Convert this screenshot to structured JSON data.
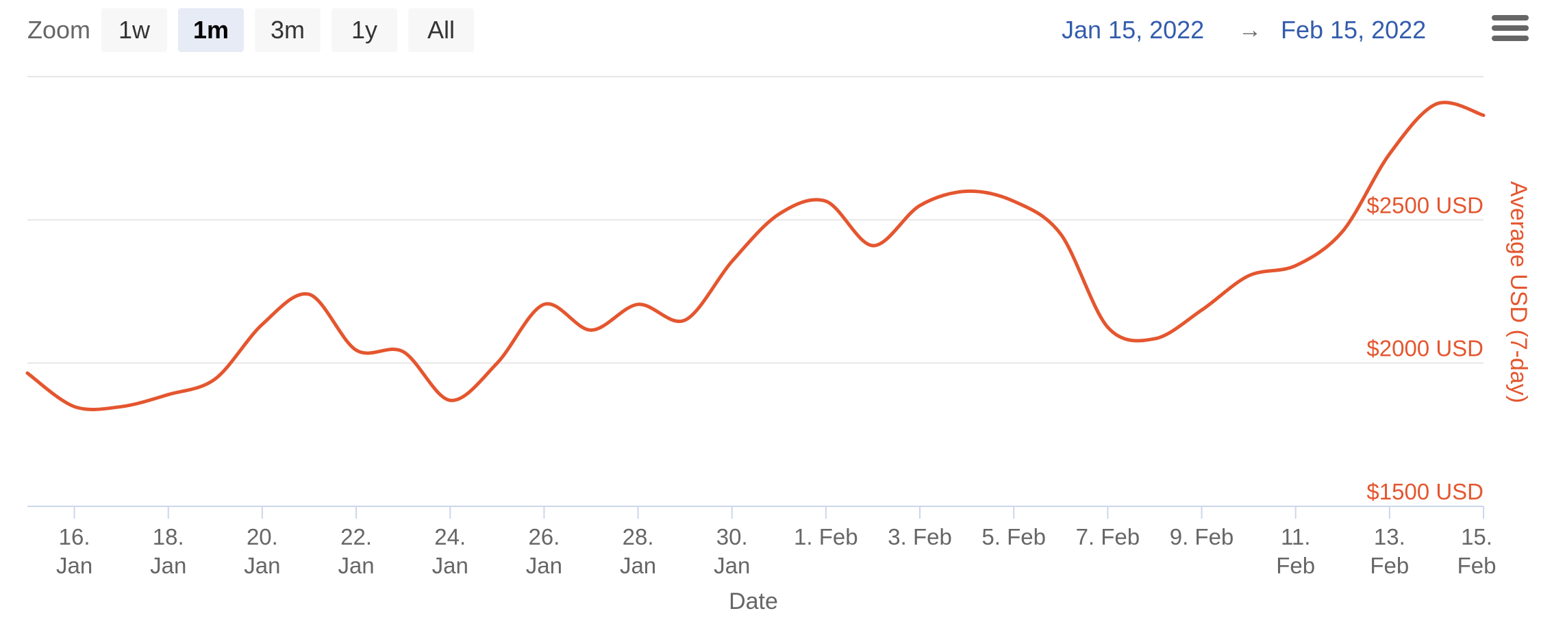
{
  "range_selector": {
    "zoom_label": "Zoom",
    "buttons": [
      {
        "label": "1w",
        "active": false
      },
      {
        "label": "1m",
        "active": true
      },
      {
        "label": "3m",
        "active": false
      },
      {
        "label": "1y",
        "active": false
      },
      {
        "label": "All",
        "active": false
      }
    ],
    "from_date": "Jan 15, 2022",
    "separator": "→",
    "to_date": "Feb 15, 2022"
  },
  "menu_icon": "hamburger-menu-icon",
  "colors": {
    "series": "#e4562f",
    "grid": "#e6e6e6",
    "axis": "#ccd6eb",
    "date_link": "#335cad",
    "active_button": "#e6ebf5"
  },
  "chart_data": {
    "type": "line",
    "xlabel": "Date",
    "ylabel": "Average USD (7-day)",
    "ylim": [
      1500,
      3000
    ],
    "xlim": [
      "2022-01-15",
      "2022-02-15"
    ],
    "yticks": [
      {
        "value": 1500,
        "label": "$1500 USD"
      },
      {
        "value": 2000,
        "label": "$2000 USD"
      },
      {
        "value": 2500,
        "label": "$2500 USD"
      }
    ],
    "xticks": [
      {
        "date": "2022-01-16",
        "label": [
          "16.",
          "Jan"
        ]
      },
      {
        "date": "2022-01-18",
        "label": [
          "18.",
          "Jan"
        ]
      },
      {
        "date": "2022-01-20",
        "label": [
          "20.",
          "Jan"
        ]
      },
      {
        "date": "2022-01-22",
        "label": [
          "22.",
          "Jan"
        ]
      },
      {
        "date": "2022-01-24",
        "label": [
          "24.",
          "Jan"
        ]
      },
      {
        "date": "2022-01-26",
        "label": [
          "26.",
          "Jan"
        ]
      },
      {
        "date": "2022-01-28",
        "label": [
          "28.",
          "Jan"
        ]
      },
      {
        "date": "2022-01-30",
        "label": [
          "30.",
          "Jan"
        ]
      },
      {
        "date": "2022-02-01",
        "label": [
          "1. Feb"
        ]
      },
      {
        "date": "2022-02-03",
        "label": [
          "3. Feb"
        ]
      },
      {
        "date": "2022-02-05",
        "label": [
          "5. Feb"
        ]
      },
      {
        "date": "2022-02-07",
        "label": [
          "7. Feb"
        ]
      },
      {
        "date": "2022-02-09",
        "label": [
          "9. Feb"
        ]
      },
      {
        "date": "2022-02-11",
        "label": [
          "11.",
          "Feb"
        ]
      },
      {
        "date": "2022-02-13",
        "label": [
          "13.",
          "Feb"
        ]
      },
      {
        "date": "2022-02-15",
        "label": [
          "15.",
          "Feb"
        ]
      }
    ],
    "grid": true,
    "series": [
      {
        "points": [
          {
            "x": "2022-01-15",
            "y": 1965
          },
          {
            "x": "2022-01-16",
            "y": 1848
          },
          {
            "x": "2022-01-17",
            "y": 1848
          },
          {
            "x": "2022-01-18",
            "y": 1890
          },
          {
            "x": "2022-01-19",
            "y": 1945
          },
          {
            "x": "2022-01-20",
            "y": 2135
          },
          {
            "x": "2022-01-21",
            "y": 2240
          },
          {
            "x": "2022-01-22",
            "y": 2045
          },
          {
            "x": "2022-01-23",
            "y": 2040
          },
          {
            "x": "2022-01-24",
            "y": 1870
          },
          {
            "x": "2022-01-25",
            "y": 2000
          },
          {
            "x": "2022-01-26",
            "y": 2205
          },
          {
            "x": "2022-01-27",
            "y": 2115
          },
          {
            "x": "2022-01-28",
            "y": 2205
          },
          {
            "x": "2022-01-29",
            "y": 2150
          },
          {
            "x": "2022-01-30",
            "y": 2355
          },
          {
            "x": "2022-01-31",
            "y": 2520
          },
          {
            "x": "2022-02-01",
            "y": 2565
          },
          {
            "x": "2022-02-02",
            "y": 2410
          },
          {
            "x": "2022-02-03",
            "y": 2550
          },
          {
            "x": "2022-02-04",
            "y": 2600
          },
          {
            "x": "2022-02-05",
            "y": 2565
          },
          {
            "x": "2022-02-06",
            "y": 2450
          },
          {
            "x": "2022-02-07",
            "y": 2125
          },
          {
            "x": "2022-02-08",
            "y": 2085
          },
          {
            "x": "2022-02-09",
            "y": 2185
          },
          {
            "x": "2022-02-10",
            "y": 2305
          },
          {
            "x": "2022-02-11",
            "y": 2340
          },
          {
            "x": "2022-02-12",
            "y": 2460
          },
          {
            "x": "2022-02-13",
            "y": 2730
          },
          {
            "x": "2022-02-14",
            "y": 2905
          },
          {
            "x": "2022-02-15",
            "y": 2865
          }
        ]
      }
    ]
  }
}
